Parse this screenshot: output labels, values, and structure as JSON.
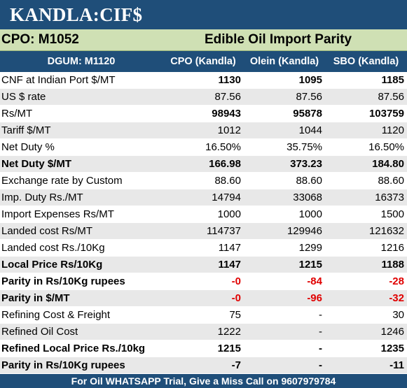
{
  "title": "KANDLA:CIF$",
  "subheader": {
    "left": "CPO: M1052",
    "right": "Edible Oil Import Parity"
  },
  "columns": [
    "DGUM: M1120",
    "CPO (Kandla)",
    "Olein (Kandla)",
    "SBO (Kandla)"
  ],
  "rows": [
    {
      "label": "CNF at Indian Port $/MT",
      "values": [
        "1130",
        "1095",
        "1185"
      ]
    },
    {
      "label": "US $ rate",
      "values": [
        "87.56",
        "87.56",
        "87.56"
      ]
    },
    {
      "label": "Rs/MT",
      "values": [
        "98943",
        "95878",
        "103759"
      ]
    },
    {
      "label": "Tariff $/MT",
      "values": [
        "1012",
        "1044",
        "1120"
      ]
    },
    {
      "label": "Net Duty %",
      "values": [
        "16.50%",
        "35.75%",
        "16.50%"
      ]
    },
    {
      "label": "Net Duty $/MT",
      "values": [
        "166.98",
        "373.23",
        "184.80"
      ]
    },
    {
      "label": "Exchange rate by Custom",
      "values": [
        "88.60",
        "88.60",
        "88.60"
      ]
    },
    {
      "label": "Imp. Duty Rs./MT",
      "values": [
        "14794",
        "33068",
        "16373"
      ]
    },
    {
      "label": "Import Expenses Rs/MT",
      "values": [
        "1000",
        "1000",
        "1500"
      ]
    },
    {
      "label": "Landed cost Rs/MT",
      "values": [
        "114737",
        "129946",
        "121632"
      ]
    },
    {
      "label": "Landed cost Rs./10Kg",
      "values": [
        "1147",
        "1299",
        "1216"
      ]
    },
    {
      "label": "Local Price Rs/10Kg",
      "values": [
        "1147",
        "1215",
        "1188"
      ]
    },
    {
      "label": "Parity in Rs/10Kg rupees",
      "values": [
        "-0",
        "-84",
        "-28"
      ]
    },
    {
      "label": "Parity in $/MT",
      "values": [
        "-0",
        "-96",
        "-32"
      ]
    },
    {
      "label": "Refining Cost & Freight",
      "values": [
        "75",
        "-",
        "30"
      ]
    },
    {
      "label": "Refined Oil Cost",
      "values": [
        "1222",
        "-",
        "1246"
      ]
    },
    {
      "label": "Refined Local Price Rs./10kg",
      "values": [
        "1215",
        "-",
        "1235"
      ]
    },
    {
      "label": "Parity in Rs/10Kg rupees",
      "values": [
        "-7",
        "-",
        "-11"
      ]
    }
  ],
  "footer": "For Oil WHATSAPP Trial, Give a Miss Call on 9607979784",
  "colors": {
    "header_blue": "#1f4e79",
    "subheader_green": "#cfe0b4",
    "stripe_gray": "#e8e8e8",
    "negative_red": "#e00000"
  }
}
